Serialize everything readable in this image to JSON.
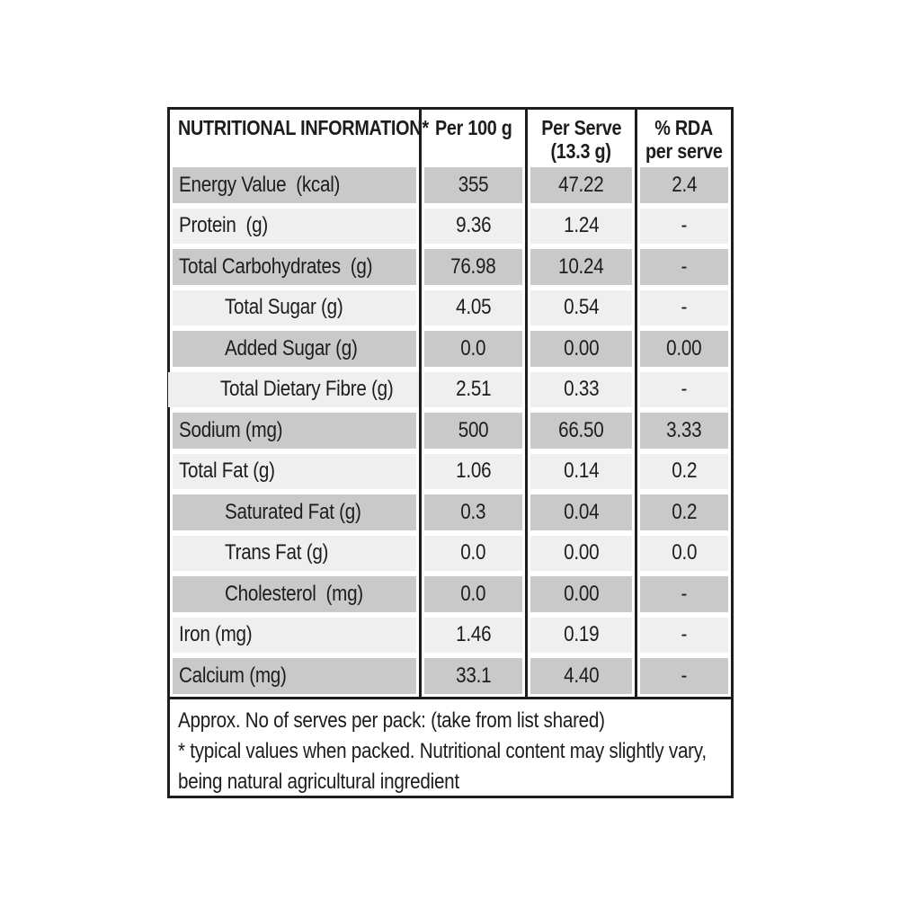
{
  "nutrition": {
    "header": {
      "nutrient_col": "NUTRITIONAL INFORMATION*",
      "per_100g_col": "Per 100 g",
      "per_serve_col_line1": "Per Serve",
      "per_serve_col_line2": "(13.3 g)",
      "rda_col_line1": "% RDA",
      "rda_col_line2": "per serve"
    },
    "rows": [
      {
        "label": "Energy Value  (kcal)",
        "per_100g": "355",
        "per_serve": "47.22",
        "rda_per_serve": "2.4",
        "indent": false
      },
      {
        "label": "Protein  (g)",
        "per_100g": "9.36",
        "per_serve": "1.24",
        "rda_per_serve": "-",
        "indent": false
      },
      {
        "label": "Total Carbohydrates  (g)",
        "per_100g": "76.98",
        "per_serve": "10.24",
        "rda_per_serve": "-",
        "indent": false
      },
      {
        "label": "Total Sugar (g)",
        "per_100g": "4.05",
        "per_serve": "0.54",
        "rda_per_serve": "-",
        "indent": true
      },
      {
        "label": "Added Sugar (g)",
        "per_100g": "0.0",
        "per_serve": "0.00",
        "rda_per_serve": "0.00",
        "indent": true
      },
      {
        "label": "Total Dietary Fibre (g)",
        "per_100g": "2.51",
        "per_serve": "0.33",
        "rda_per_serve": "-",
        "indent": true
      },
      {
        "label": "Sodium (mg)",
        "per_100g": "500",
        "per_serve": "66.50",
        "rda_per_serve": "3.33",
        "indent": false
      },
      {
        "label": "Total Fat (g)",
        "per_100g": "1.06",
        "per_serve": "0.14",
        "rda_per_serve": "0.2",
        "indent": false
      },
      {
        "label": "Saturated Fat (g)",
        "per_100g": "0.3",
        "per_serve": "0.04",
        "rda_per_serve": "0.2",
        "indent": true
      },
      {
        "label": "Trans Fat (g)",
        "per_100g": "0.0",
        "per_serve": "0.00",
        "rda_per_serve": "0.0",
        "indent": true
      },
      {
        "label": "Cholesterol  (mg)",
        "per_100g": "0.0",
        "per_serve": "0.00",
        "rda_per_serve": "-",
        "indent": true
      },
      {
        "label": "Iron (mg)",
        "per_100g": "1.46",
        "per_serve": "0.19",
        "rda_per_serve": "-",
        "indent": false
      },
      {
        "label": "Calcium (mg)",
        "per_100g": "33.1",
        "per_serve": "4.40",
        "rda_per_serve": "-",
        "indent": false
      }
    ],
    "footnote_lines": [
      "Approx. No of serves per pack: (take from list shared)",
      "* typical values when packed. Nutritional content may slightly vary,",
      "being natural agricultural ingredient"
    ]
  },
  "colors": {
    "stripe_dark": "#c9c9c9",
    "stripe_light": "#efefef",
    "line": "#1d1d1b",
    "text": "#1d1d1b"
  }
}
